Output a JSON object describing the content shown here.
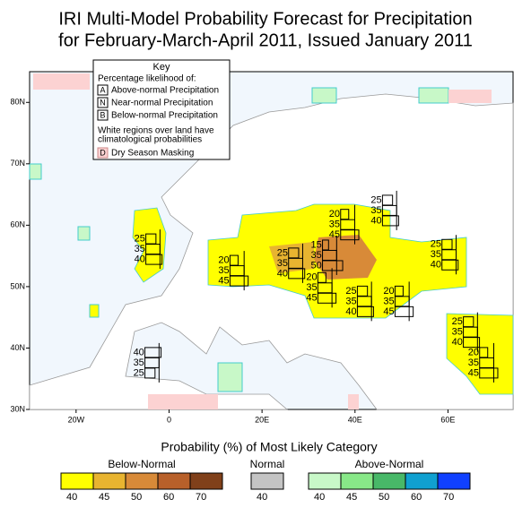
{
  "title": [
    "IRI Multi-Model Probability Forecast for Precipitation",
    "for February-March-April 2011, Issued January 2011"
  ],
  "key": {
    "heading": "Key",
    "subtitle": "Percentage likelihood of:",
    "items": [
      {
        "letter": "A",
        "text": "Above-normal Precipitation"
      },
      {
        "letter": "N",
        "text": "Near-normal Precipitation"
      },
      {
        "letter": "B",
        "text": "Below-normal Precipitation"
      }
    ],
    "note": [
      "White regions over land have",
      "climatological probabilities"
    ],
    "dry": {
      "letter": "D",
      "text": "Dry Season Masking"
    }
  },
  "map": {
    "xlim": [
      -30,
      74
    ],
    "ylim": [
      30,
      85
    ],
    "xticks": [
      {
        "value": -20,
        "label": "20W"
      },
      0,
      {
        "value": 20,
        "label": "20E"
      },
      {
        "value": 40,
        "label": "40E"
      },
      {
        "value": 60,
        "label": "60E"
      }
    ],
    "yticks": [
      {
        "value": 30,
        "label": "30N"
      },
      {
        "value": 40,
        "label": "40N"
      },
      {
        "value": 50,
        "label": "50N"
      },
      {
        "value": 60,
        "label": "60N"
      },
      {
        "value": 70,
        "label": "70N"
      },
      {
        "value": 80,
        "label": "80N"
      }
    ],
    "forecasts": [
      {
        "lon": 43.4,
        "lat": 62.4,
        "above": 25,
        "normal": 35,
        "below": 40
      },
      {
        "lon": 34.4,
        "lat": 60.1,
        "above": 20,
        "normal": 35,
        "below": 45
      },
      {
        "lon": 56.2,
        "lat": 55.2,
        "above": 25,
        "normal": 35,
        "below": 40
      },
      {
        "lon": -7.5,
        "lat": 56.1,
        "above": 25,
        "normal": 35,
        "below": 40
      },
      {
        "lon": 30.5,
        "lat": 55.1,
        "above": 15,
        "normal": 35,
        "below": 50
      },
      {
        "lon": 23.2,
        "lat": 53.8,
        "above": 25,
        "normal": 35,
        "below": 40
      },
      {
        "lon": 10.6,
        "lat": 52.6,
        "above": 20,
        "normal": 35,
        "below": 45
      },
      {
        "lon": 29.5,
        "lat": 49.8,
        "above": 20,
        "normal": 35,
        "below": 45
      },
      {
        "lon": 38.0,
        "lat": 47.6,
        "above": 25,
        "normal": 35,
        "below": 40
      },
      {
        "lon": 46.1,
        "lat": 47.6,
        "above": 20,
        "normal": 35,
        "below": 45
      },
      {
        "lon": 60.8,
        "lat": 42.6,
        "above": 25,
        "normal": 35,
        "below": 40
      },
      {
        "lon": 64.3,
        "lat": 37.6,
        "above": 20,
        "normal": 35,
        "below": 45
      },
      {
        "lon": -7.7,
        "lat": 37.6,
        "above": 40,
        "normal": 35,
        "below": 25
      }
    ]
  },
  "colorbar": {
    "title": "Probability (%) of Most Likely Category",
    "groups": [
      {
        "name": "Below-Normal",
        "colors": [
          "#ffff00",
          "#e8b430",
          "#d88a38",
          "#b8602a",
          "#80401a"
        ],
        "ticks": [
          40,
          45,
          50,
          60,
          70
        ]
      },
      {
        "name": "Normal",
        "colors": [
          "#c4c4c4"
        ],
        "ticks": [
          40
        ]
      },
      {
        "name": "Above-Normal",
        "colors": [
          "#c8f8c8",
          "#88e888",
          "#48b868",
          "#10a0d0",
          "#1040ff"
        ],
        "ticks": [
          40,
          45,
          50,
          60,
          70
        ]
      }
    ]
  }
}
